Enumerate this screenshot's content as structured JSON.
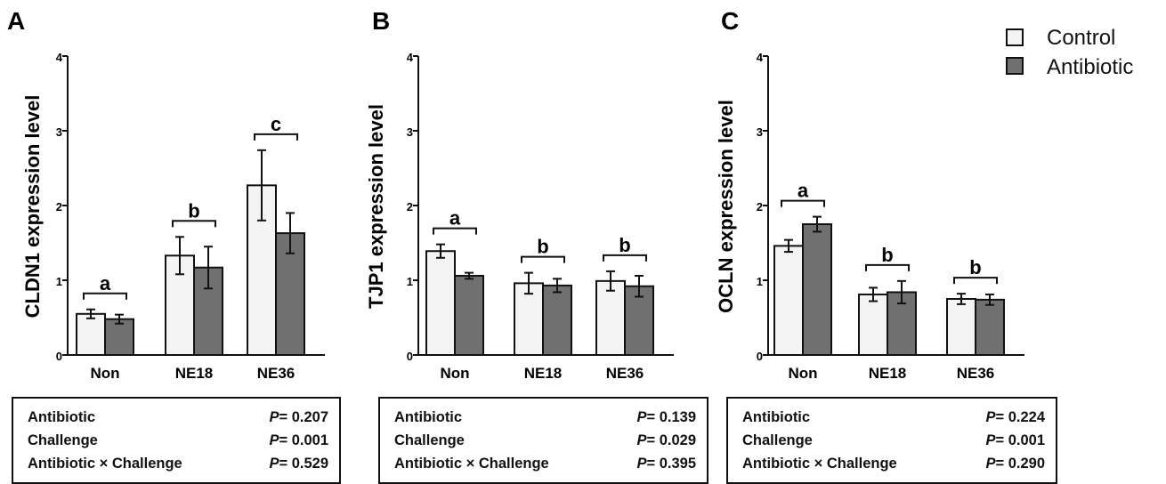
{
  "legend": [
    {
      "label": "Control",
      "color": "#f4f4f4"
    },
    {
      "label": "Antibiotic",
      "color": "#707070"
    }
  ],
  "y_ticks": [
    "0",
    "1",
    "2",
    "3",
    "4"
  ],
  "chart_data": [
    {
      "type": "bar",
      "panel_label": "A",
      "ylabel": "CLDN1 expression level",
      "ylim": [
        0,
        4
      ],
      "categories": [
        "Non",
        "NE18",
        "NE36"
      ],
      "series": [
        {
          "name": "Control",
          "values": [
            0.55,
            1.33,
            2.27
          ],
          "errors": [
            0.06,
            0.25,
            0.47
          ]
        },
        {
          "name": "Antibiotic",
          "values": [
            0.48,
            1.17,
            1.63
          ],
          "errors": [
            0.06,
            0.28,
            0.27
          ]
        }
      ],
      "significance_letters": [
        "a",
        "b",
        "c"
      ],
      "stats": [
        {
          "label": "Antibiotic",
          "p": "0.207"
        },
        {
          "label": "Challenge",
          "p": "0.001"
        },
        {
          "label": "Antibiotic × Challenge",
          "p": "0.529"
        }
      ]
    },
    {
      "type": "bar",
      "panel_label": "B",
      "ylabel": "TJP1 expression level",
      "ylim": [
        0,
        4
      ],
      "categories": [
        "Non",
        "NE18",
        "NE36"
      ],
      "series": [
        {
          "name": "Control",
          "values": [
            1.39,
            0.96,
            0.99
          ],
          "errors": [
            0.09,
            0.14,
            0.13
          ]
        },
        {
          "name": "Antibiotic",
          "values": [
            1.06,
            0.93,
            0.92
          ],
          "errors": [
            0.04,
            0.09,
            0.14
          ]
        }
      ],
      "significance_letters": [
        "a",
        "b",
        "b"
      ],
      "stats": [
        {
          "label": "Antibiotic",
          "p": "0.139"
        },
        {
          "label": "Challenge",
          "p": "0.029"
        },
        {
          "label": "Antibiotic × Challenge",
          "p": "0.395"
        }
      ]
    },
    {
      "type": "bar",
      "panel_label": "C",
      "ylabel": "OCLN expression level",
      "ylim": [
        0,
        4
      ],
      "categories": [
        "Non",
        "NE18",
        "NE36"
      ],
      "series": [
        {
          "name": "Control",
          "values": [
            1.46,
            0.81,
            0.75
          ],
          "errors": [
            0.08,
            0.09,
            0.07
          ]
        },
        {
          "name": "Antibiotic",
          "values": [
            1.75,
            0.84,
            0.74
          ],
          "errors": [
            0.1,
            0.15,
            0.07
          ]
        }
      ],
      "significance_letters": [
        "a",
        "b",
        "b"
      ],
      "stats": [
        {
          "label": "Antibiotic",
          "p": "0.224"
        },
        {
          "label": "Challenge",
          "p": "0.001"
        },
        {
          "label": "Antibiotic × Challenge",
          "p": "0.290"
        }
      ]
    }
  ]
}
